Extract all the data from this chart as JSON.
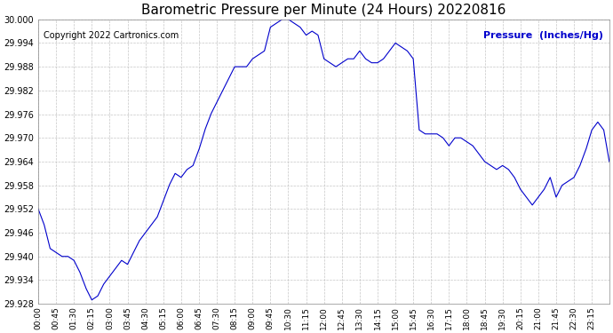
{
  "title": "Barometric Pressure per Minute (24 Hours) 20220816",
  "copyright": "Copyright 2022 Cartronics.com",
  "ylabel": "Pressure  (Inches/Hg)",
  "line_color": "#0000cc",
  "background_color": "#ffffff",
  "grid_color": "#c0c0c0",
  "title_color": "#000000",
  "copyright_color": "#000000",
  "ylabel_color": "#0000cc",
  "ylim": [
    29.928,
    30.0
  ],
  "yticks": [
    29.928,
    29.934,
    29.94,
    29.946,
    29.952,
    29.958,
    29.964,
    29.97,
    29.976,
    29.982,
    29.988,
    29.994,
    30.0
  ],
  "xtick_labels": [
    "00:00",
    "00:45",
    "01:30",
    "02:15",
    "03:00",
    "03:45",
    "04:30",
    "05:15",
    "06:00",
    "06:45",
    "07:30",
    "08:15",
    "09:00",
    "09:45",
    "10:30",
    "11:15",
    "12:00",
    "12:45",
    "13:30",
    "14:15",
    "15:00",
    "15:45",
    "16:30",
    "17:15",
    "18:00",
    "18:45",
    "19:30",
    "20:15",
    "21:00",
    "21:45",
    "22:30",
    "23:15"
  ],
  "control_minutes": [
    0,
    15,
    30,
    45,
    60,
    75,
    90,
    105,
    120,
    135,
    150,
    165,
    180,
    195,
    210,
    225,
    240,
    255,
    270,
    285,
    300,
    315,
    330,
    345,
    360,
    375,
    390,
    405,
    420,
    435,
    450,
    465,
    480,
    495,
    510,
    525,
    540,
    555,
    570,
    585,
    600,
    615,
    630,
    645,
    660,
    675,
    690,
    705,
    720,
    735,
    750,
    765,
    780,
    795,
    810,
    825,
    840,
    855,
    870,
    885,
    900,
    915,
    930,
    945,
    960,
    975,
    990,
    1005,
    1020,
    1035,
    1050,
    1065,
    1080,
    1095,
    1110,
    1125,
    1140,
    1155,
    1170,
    1185,
    1200,
    1215,
    1230,
    1245,
    1260,
    1275,
    1290,
    1305,
    1320,
    1335,
    1350,
    1365,
    1380,
    1395,
    1410,
    1425,
    1439
  ],
  "control_pressure": [
    29.952,
    29.948,
    29.942,
    29.941,
    29.94,
    29.94,
    29.939,
    29.936,
    29.932,
    29.929,
    29.93,
    29.933,
    29.935,
    29.937,
    29.939,
    29.938,
    29.941,
    29.944,
    29.946,
    29.948,
    29.95,
    29.954,
    29.958,
    29.961,
    29.96,
    29.962,
    29.963,
    29.967,
    29.972,
    29.976,
    29.979,
    29.982,
    29.985,
    29.988,
    29.988,
    29.988,
    29.99,
    29.991,
    29.992,
    29.998,
    29.999,
    30.0,
    30.0,
    29.999,
    29.998,
    29.996,
    29.997,
    29.996,
    29.99,
    29.989,
    29.988,
    29.989,
    29.99,
    29.99,
    29.992,
    29.99,
    29.989,
    29.989,
    29.99,
    29.992,
    29.994,
    29.993,
    29.992,
    29.99,
    29.972,
    29.971,
    29.971,
    29.971,
    29.97,
    29.968,
    29.97,
    29.97,
    29.969,
    29.968,
    29.966,
    29.964,
    29.963,
    29.962,
    29.963,
    29.962,
    29.96,
    29.957,
    29.955,
    29.953,
    29.955,
    29.957,
    29.96,
    29.955,
    29.958,
    29.959,
    29.96,
    29.963,
    29.967,
    29.972,
    29.974,
    29.972,
    29.964
  ]
}
